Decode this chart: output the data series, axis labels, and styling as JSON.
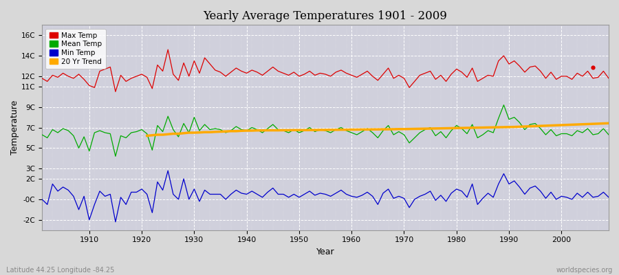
{
  "title": "Yearly Average Temperatures 1901 - 2009",
  "xlabel": "Year",
  "ylabel": "Temperature",
  "bottom_left": "Latitude 44.25 Longitude -84.25",
  "bottom_right": "worldspecies.org",
  "years_start": 1901,
  "years_end": 2009,
  "bg_color": "#d8d8d8",
  "plot_bg_color": "#d0d0dc",
  "grid_color": "#ffffff",
  "legend_entries": [
    "Max Temp",
    "Mean Temp",
    "Min Temp",
    "20 Yr Trend"
  ],
  "legend_colors": [
    "#dd0000",
    "#00aa00",
    "#0000cc",
    "#ffaa00"
  ],
  "max_temp": [
    11.8,
    11.5,
    12.1,
    11.9,
    12.3,
    12.0,
    11.8,
    12.2,
    11.7,
    11.1,
    10.9,
    12.5,
    12.7,
    12.9,
    10.5,
    12.1,
    11.5,
    11.8,
    12.0,
    12.2,
    11.9,
    10.8,
    13.1,
    12.5,
    14.6,
    12.2,
    11.6,
    13.3,
    12.0,
    13.5,
    12.3,
    13.8,
    13.2,
    12.6,
    12.4,
    12.0,
    12.4,
    12.8,
    12.5,
    12.3,
    12.6,
    12.4,
    12.1,
    12.5,
    12.9,
    12.5,
    12.3,
    12.1,
    12.4,
    12.0,
    12.2,
    12.5,
    12.1,
    12.3,
    12.2,
    12.0,
    12.4,
    12.6,
    12.3,
    12.1,
    11.9,
    12.2,
    12.5,
    12.0,
    11.6,
    12.2,
    12.8,
    11.8,
    12.1,
    11.8,
    10.9,
    11.5,
    12.1,
    12.3,
    12.5,
    11.7,
    12.1,
    11.5,
    12.2,
    12.7,
    12.4,
    11.9,
    12.8,
    11.5,
    11.8,
    12.1,
    12.0,
    13.5,
    14.0,
    13.2,
    13.5,
    13.0,
    12.4,
    12.9,
    13.0,
    12.5,
    11.8,
    12.4,
    11.7,
    12.0,
    12.0,
    11.7,
    12.3,
    12.0,
    12.5,
    11.8,
    11.9,
    12.5,
    11.8
  ],
  "mean_temp": [
    6.3,
    6.0,
    6.8,
    6.5,
    6.9,
    6.7,
    6.2,
    5.0,
    6.1,
    4.7,
    6.5,
    6.7,
    6.5,
    6.4,
    4.2,
    6.2,
    6.0,
    6.5,
    6.6,
    6.8,
    6.4,
    4.8,
    7.2,
    6.6,
    8.1,
    6.8,
    6.1,
    7.4,
    6.5,
    8.0,
    6.7,
    7.3,
    6.8,
    6.9,
    6.8,
    6.5,
    6.7,
    7.1,
    6.8,
    6.7,
    7.0,
    6.8,
    6.5,
    6.9,
    7.3,
    6.8,
    6.7,
    6.5,
    6.8,
    6.5,
    6.7,
    7.0,
    6.6,
    6.8,
    6.7,
    6.5,
    6.8,
    7.0,
    6.7,
    6.5,
    6.3,
    6.6,
    6.9,
    6.5,
    6.0,
    6.7,
    7.2,
    6.3,
    6.6,
    6.3,
    5.5,
    6.0,
    6.5,
    6.8,
    7.0,
    6.2,
    6.6,
    6.0,
    6.7,
    7.2,
    6.9,
    6.4,
    7.3,
    6.0,
    6.3,
    6.7,
    6.5,
    7.9,
    9.2,
    7.8,
    8.0,
    7.5,
    6.8,
    7.3,
    7.4,
    6.9,
    6.3,
    6.8,
    6.2,
    6.4,
    6.4,
    6.2,
    6.7,
    6.5,
    6.9,
    6.3,
    6.4,
    6.9,
    6.3
  ],
  "min_temp": [
    0.0,
    -0.5,
    1.5,
    0.8,
    1.2,
    0.9,
    0.3,
    -1.0,
    0.3,
    -2.0,
    -0.5,
    0.8,
    0.3,
    0.5,
    -2.2,
    0.2,
    -0.5,
    0.7,
    0.7,
    1.0,
    0.5,
    -1.3,
    1.7,
    0.9,
    2.8,
    0.5,
    0.0,
    2.0,
    0.0,
    1.0,
    -0.2,
    0.9,
    0.5,
    0.5,
    0.5,
    0.0,
    0.5,
    0.9,
    0.6,
    0.5,
    0.8,
    0.5,
    0.2,
    0.7,
    1.1,
    0.5,
    0.5,
    0.2,
    0.5,
    0.2,
    0.5,
    0.8,
    0.4,
    0.6,
    0.5,
    0.3,
    0.6,
    0.9,
    0.5,
    0.3,
    0.2,
    0.4,
    0.7,
    0.3,
    -0.5,
    0.6,
    1.0,
    0.1,
    0.3,
    0.1,
    -0.8,
    0.0,
    0.3,
    0.5,
    0.8,
    -0.1,
    0.4,
    -0.2,
    0.6,
    1.0,
    0.8,
    0.2,
    1.5,
    -0.5,
    0.1,
    0.6,
    0.2,
    1.5,
    2.5,
    1.5,
    1.8,
    1.2,
    0.5,
    1.1,
    1.3,
    0.8,
    0.1,
    0.7,
    0.0,
    0.3,
    0.2,
    0.0,
    0.6,
    0.2,
    0.7,
    0.2,
    0.3,
    0.7,
    0.2
  ],
  "trend_start_year": 1921,
  "trend": [
    6.2,
    6.25,
    6.3,
    6.3,
    6.35,
    6.4,
    6.4,
    6.45,
    6.5,
    6.5,
    6.52,
    6.55,
    6.55,
    6.58,
    6.6,
    6.62,
    6.65,
    6.65,
    6.68,
    6.7,
    6.7,
    6.72,
    6.72,
    6.73,
    6.73,
    6.73,
    6.74,
    6.74,
    6.75,
    6.75,
    6.75,
    6.76,
    6.76,
    6.77,
    6.77,
    6.78,
    6.78,
    6.79,
    6.79,
    6.8,
    6.8,
    6.81,
    6.81,
    6.82,
    6.82,
    6.83,
    6.83,
    6.84,
    6.85,
    6.85,
    6.86,
    6.87,
    6.88,
    6.89,
    6.9,
    6.91,
    6.92,
    6.93,
    6.94,
    6.95,
    6.96,
    6.97,
    6.98,
    6.99,
    7.0,
    7.01,
    7.02,
    7.03,
    7.04,
    7.05,
    7.06,
    7.08,
    7.1,
    7.12,
    7.14,
    7.16,
    7.18,
    7.2,
    7.22,
    7.24,
    7.26,
    7.28,
    7.3,
    7.32,
    7.34,
    7.36,
    7.38,
    7.4,
    7.42
  ],
  "isolated_dot_year": 2006,
  "isolated_dot_val": 12.9,
  "ytick_vals": [
    -2,
    0,
    2,
    3,
    5,
    7,
    9,
    11,
    12,
    14,
    16
  ],
  "ytick_labels": [
    "-2C",
    "-0C",
    "2C",
    "3C",
    "5C",
    "7C",
    "9C",
    "11C",
    "12C",
    "14C",
    "16C"
  ],
  "xlim": [
    1901,
    2009
  ],
  "ylim": [
    -3.0,
    17.0
  ],
  "xticks": [
    1910,
    1920,
    1930,
    1940,
    1950,
    1960,
    1970,
    1980,
    1990,
    2000
  ]
}
